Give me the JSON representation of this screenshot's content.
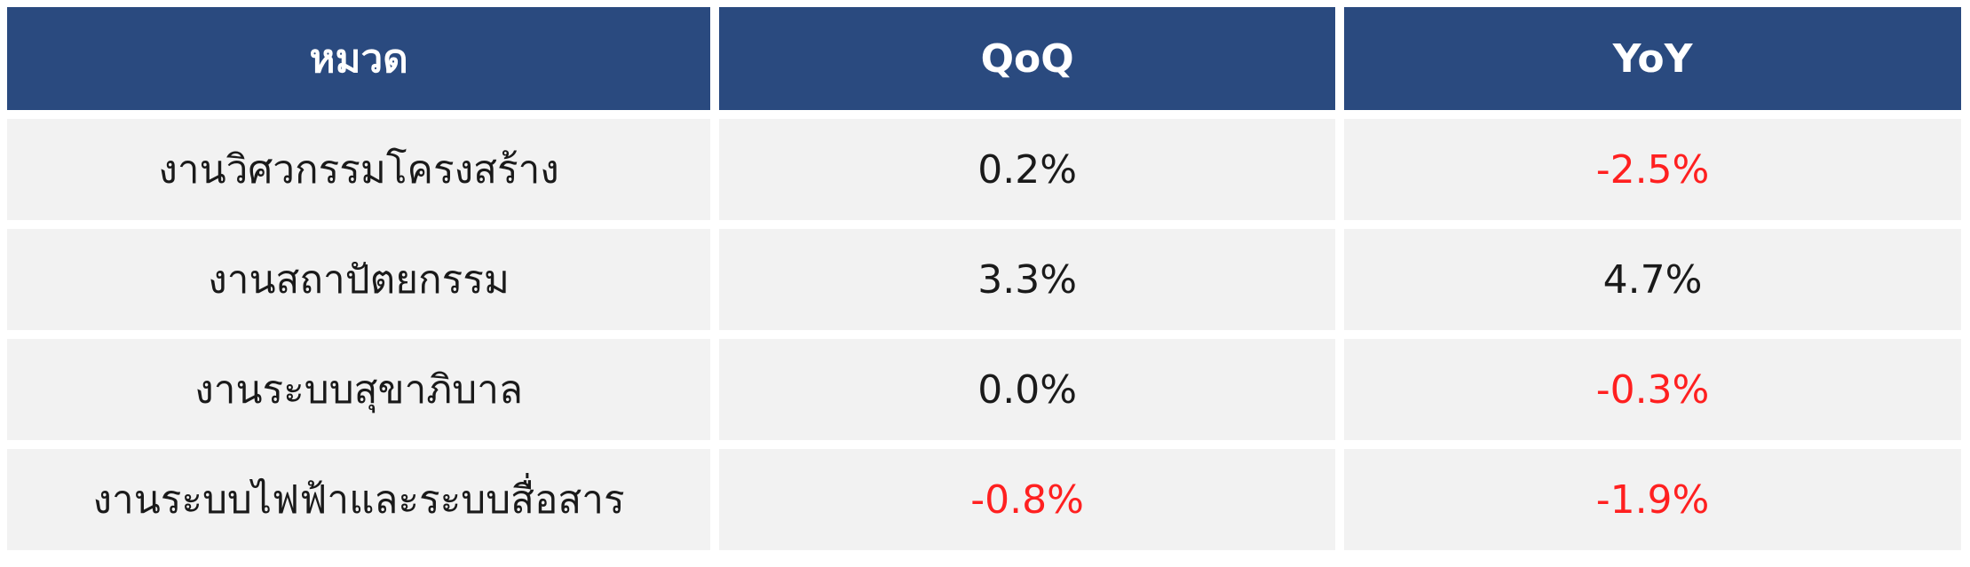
{
  "table": {
    "headers": [
      "หมวด",
      "QoQ",
      "YoY"
    ],
    "rows": [
      {
        "category": "งานวิศวกรรมโครงสร้าง",
        "qoq": "0.2%",
        "yoy": "-2.5%"
      },
      {
        "category": "งานสถาปัตยกรรม",
        "qoq": "3.3%",
        "yoy": "4.7%"
      },
      {
        "category": "งานระบบสุขาภิบาล",
        "qoq": "0.0%",
        "yoy": "-0.3%"
      },
      {
        "category": "งานระบบไฟฟ้าและระบบสื่อสาร",
        "qoq": "-0.8%",
        "yoy": "-1.9%"
      }
    ]
  },
  "colors": {
    "header_bg": "#2a4a7f",
    "header_text": "#ffffff",
    "cell_bg": "#f2f2f2",
    "negative_text": "#ff2020"
  }
}
